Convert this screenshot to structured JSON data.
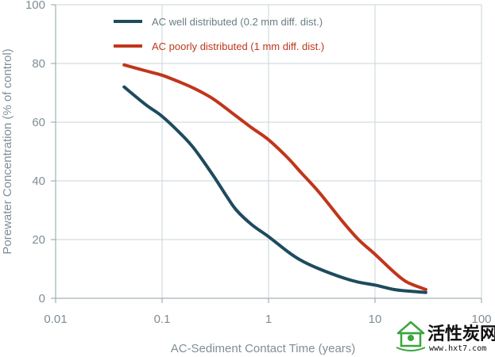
{
  "chart_data": {
    "type": "line",
    "title": "",
    "xlabel": "AC-Sediment Contact Time (years)",
    "ylabel": "Porewater Concentration (% of control)",
    "xscale": "log",
    "xlim": [
      0.01,
      100
    ],
    "ylim": [
      0,
      100
    ],
    "x_ticks": [
      0.01,
      0.1,
      1,
      10,
      100
    ],
    "x_tick_labels": [
      "0.01",
      "0.1",
      "1",
      "10",
      "100"
    ],
    "y_ticks": [
      0,
      20,
      40,
      60,
      80,
      100
    ],
    "y_tick_labels": [
      "0",
      "20",
      "40",
      "60",
      "80",
      "100"
    ],
    "grid": true,
    "legend_position": "top-left",
    "series": [
      {
        "name": "AC well distributed (0.2 mm diff. dist.)",
        "color": "#1e4b5e",
        "x": [
          0.044,
          0.07,
          0.1,
          0.15,
          0.2,
          0.3,
          0.4,
          0.5,
          0.7,
          1,
          1.5,
          2,
          3,
          5,
          7,
          10,
          15,
          20,
          30
        ],
        "y": [
          72,
          66,
          62,
          56,
          51,
          42,
          35,
          30,
          25,
          21,
          16,
          13,
          10,
          7,
          5.5,
          4.5,
          3,
          2.5,
          2
        ]
      },
      {
        "name": "AC poorly distributed (1 mm diff. dist.)",
        "color": "#c0361c",
        "x": [
          0.044,
          0.07,
          0.1,
          0.15,
          0.2,
          0.3,
          0.5,
          0.7,
          1,
          1.5,
          2,
          3,
          5,
          7,
          10,
          15,
          20,
          30
        ],
        "y": [
          79.5,
          77.5,
          76,
          73.5,
          71.5,
          68,
          62,
          58,
          54,
          48,
          43,
          36,
          26,
          20,
          15,
          9,
          5.5,
          3
        ]
      }
    ]
  },
  "watermark": {
    "title": "活性炭网",
    "url": "www.hxt7.com",
    "logo_color": "#3aa63c"
  }
}
